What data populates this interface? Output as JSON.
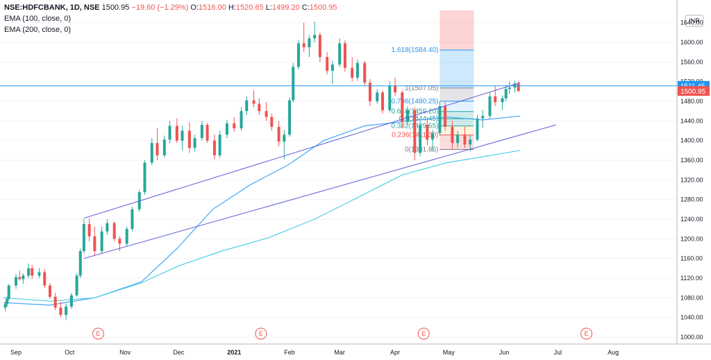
{
  "header": {
    "symbol": "NSE:HDFCBANK, 1D, NSE",
    "last": "1500.95",
    "change": "−19.60 (−1.29%)",
    "o_label": "O:",
    "o_value": "1516.00",
    "h_label": "H:",
    "h_value": "1520.65",
    "l_label": "L:",
    "l_value": "1499.20",
    "c_label": "C:",
    "c_value": "1500.95",
    "indicators": [
      "EMA (100, close, 0)",
      "EMA (200, close, 0)"
    ]
  },
  "currency": "INR",
  "colors": {
    "up": "#26a69a",
    "down": "#ef5350",
    "ema100": "#42a5f5",
    "ema200": "#4dd0e1",
    "trendline": "#5b5bd6",
    "hline": "#2196f3",
    "axis_text": "#131722"
  },
  "chart_data": {
    "type": "candlestick",
    "title": "",
    "ylim": [
      990,
      1665
    ],
    "y_ticks": [
      1640,
      1600,
      1560,
      1520,
      1480,
      1440,
      1400,
      1360,
      1320,
      1280,
      1240,
      1200,
      1160,
      1120,
      1080,
      1040,
      1000
    ],
    "x_ticks": [
      "Sep",
      "Oct",
      "Nov",
      "Dec",
      "2021",
      "Feb",
      "Mar",
      "Apr",
      "May",
      "Jun",
      "Jul",
      "Aug"
    ],
    "price_tags": [
      {
        "label": "1511.45",
        "value": 1511.45,
        "color": "#2196f3"
      },
      {
        "label": "1500.95",
        "value": 1500.95,
        "color": "#ef5350"
      }
    ],
    "horizontal_line": 1511.45,
    "fib_levels": [
      {
        "label": "1.618(1584.40)",
        "value": 1584.4,
        "color": "#2196f3"
      },
      {
        "label": "1(1507.05)",
        "value": 1507.05,
        "color": "#787b86"
      },
      {
        "label": "0.786(1480.25)",
        "value": 1480.25,
        "color": "#2196f3"
      },
      {
        "label": "0.618(1459.20)",
        "value": 1459.2,
        "color": "#26a69a"
      },
      {
        "label": "0.5(1444.45)",
        "value": 1444.45,
        "color": "#26a69a"
      },
      {
        "label": "0.382(1429.65)",
        "value": 1429.65,
        "color": "#26a69a"
      },
      {
        "label": "0.236(1411.30)",
        "value": 1411.3,
        "color": "#ef5350"
      },
      {
        "label": "0(1381.85)",
        "value": 1381.85,
        "color": "#787b86"
      }
    ],
    "event_marker": "E",
    "events": [
      "2020-10-17",
      "2021-01-16",
      "2021-04-17",
      "2021-07-17"
    ],
    "trendlines": [
      {
        "from": [
          "2020-10-09",
          1242
        ],
        "to": [
          "2021-06-10",
          1518
        ]
      },
      {
        "from": [
          "2020-10-09",
          1160
        ],
        "to": [
          "2021-06-30",
          1432
        ]
      }
    ],
    "ema100": [
      [
        "2020-08-25",
        1070
      ],
      [
        "2020-09-20",
        1065
      ],
      [
        "2020-10-15",
        1080
      ],
      [
        "2020-11-10",
        1112
      ],
      [
        "2020-11-30",
        1180
      ],
      [
        "2020-12-20",
        1260
      ],
      [
        "2021-01-10",
        1310
      ],
      [
        "2021-01-31",
        1350
      ],
      [
        "2021-02-20",
        1400
      ],
      [
        "2021-03-15",
        1430
      ],
      [
        "2021-04-10",
        1440
      ],
      [
        "2021-04-30",
        1448
      ],
      [
        "2021-05-20",
        1442
      ],
      [
        "2021-06-10",
        1450
      ]
    ],
    "ema200": [
      [
        "2020-08-25",
        1080
      ],
      [
        "2020-09-20",
        1073
      ],
      [
        "2020-10-15",
        1080
      ],
      [
        "2020-11-10",
        1110
      ],
      [
        "2020-12-01",
        1145
      ],
      [
        "2020-12-25",
        1175
      ],
      [
        "2021-01-20",
        1202
      ],
      [
        "2021-02-15",
        1240
      ],
      [
        "2021-03-10",
        1282
      ],
      [
        "2021-04-05",
        1330
      ],
      [
        "2021-04-30",
        1355
      ],
      [
        "2021-05-20",
        1367
      ],
      [
        "2021-06-10",
        1380
      ]
    ],
    "ohlc": [
      [
        "2020-08-26",
        1060,
        1072,
        1053,
        1067
      ],
      [
        "2020-08-27",
        1067,
        1082,
        1062,
        1078
      ],
      [
        "2020-08-28",
        1078,
        1108,
        1075,
        1105
      ],
      [
        "2020-09-01",
        1105,
        1128,
        1098,
        1122
      ],
      [
        "2020-09-03",
        1122,
        1135,
        1115,
        1118
      ],
      [
        "2020-09-05",
        1118,
        1130,
        1108,
        1125
      ],
      [
        "2020-09-08",
        1125,
        1150,
        1120,
        1140
      ],
      [
        "2020-09-10",
        1140,
        1147,
        1118,
        1125
      ],
      [
        "2020-09-14",
        1125,
        1140,
        1120,
        1132
      ],
      [
        "2020-09-17",
        1132,
        1138,
        1100,
        1105
      ],
      [
        "2020-09-20",
        1105,
        1110,
        1078,
        1082
      ],
      [
        "2020-09-23",
        1082,
        1090,
        1055,
        1060
      ],
      [
        "2020-09-26",
        1060,
        1072,
        1040,
        1045
      ],
      [
        "2020-09-29",
        1045,
        1068,
        1035,
        1062
      ],
      [
        "2020-10-02",
        1062,
        1090,
        1058,
        1085
      ],
      [
        "2020-10-05",
        1085,
        1130,
        1082,
        1125
      ],
      [
        "2020-10-07",
        1125,
        1180,
        1120,
        1175
      ],
      [
        "2020-10-09",
        1175,
        1240,
        1170,
        1230
      ],
      [
        "2020-10-12",
        1230,
        1242,
        1195,
        1205
      ],
      [
        "2020-10-15",
        1205,
        1225,
        1165,
        1175
      ],
      [
        "2020-10-19",
        1175,
        1225,
        1170,
        1215
      ],
      [
        "2020-10-22",
        1215,
        1240,
        1208,
        1232
      ],
      [
        "2020-10-26",
        1232,
        1236,
        1195,
        1200
      ],
      [
        "2020-10-29",
        1200,
        1205,
        1175,
        1190
      ],
      [
        "2020-11-02",
        1190,
        1225,
        1185,
        1220
      ],
      [
        "2020-11-05",
        1220,
        1265,
        1215,
        1260
      ],
      [
        "2020-11-09",
        1260,
        1300,
        1255,
        1295
      ],
      [
        "2020-11-12",
        1295,
        1360,
        1290,
        1355
      ],
      [
        "2020-11-16",
        1355,
        1405,
        1350,
        1395
      ],
      [
        "2020-11-19",
        1395,
        1425,
        1360,
        1370
      ],
      [
        "2020-11-23",
        1370,
        1410,
        1365,
        1402
      ],
      [
        "2020-11-26",
        1402,
        1440,
        1395,
        1430
      ],
      [
        "2020-11-30",
        1430,
        1445,
        1395,
        1400
      ],
      [
        "2020-12-03",
        1400,
        1430,
        1380,
        1420
      ],
      [
        "2020-12-07",
        1420,
        1438,
        1375,
        1385
      ],
      [
        "2020-12-10",
        1385,
        1412,
        1378,
        1405
      ],
      [
        "2020-12-14",
        1405,
        1440,
        1400,
        1432
      ],
      [
        "2020-12-17",
        1432,
        1436,
        1395,
        1400
      ],
      [
        "2020-12-21",
        1400,
        1412,
        1362,
        1370
      ],
      [
        "2020-12-24",
        1370,
        1420,
        1365,
        1412
      ],
      [
        "2020-12-28",
        1412,
        1442,
        1405,
        1435
      ],
      [
        "2021-01-01",
        1435,
        1448,
        1418,
        1425
      ],
      [
        "2021-01-05",
        1425,
        1468,
        1420,
        1460
      ],
      [
        "2021-01-08",
        1460,
        1490,
        1452,
        1482
      ],
      [
        "2021-01-12",
        1482,
        1502,
        1468,
        1475
      ],
      [
        "2021-01-15",
        1475,
        1486,
        1452,
        1460
      ],
      [
        "2021-01-19",
        1460,
        1478,
        1440,
        1448
      ],
      [
        "2021-01-22",
        1448,
        1455,
        1420,
        1428
      ],
      [
        "2021-01-26",
        1428,
        1440,
        1388,
        1398
      ],
      [
        "2021-01-29",
        1398,
        1422,
        1362,
        1412
      ],
      [
        "2021-02-01",
        1412,
        1488,
        1408,
        1482
      ],
      [
        "2021-02-03",
        1482,
        1558,
        1478,
        1550
      ],
      [
        "2021-02-06",
        1550,
        1605,
        1545,
        1598
      ],
      [
        "2021-02-09",
        1598,
        1640,
        1580,
        1590
      ],
      [
        "2021-02-12",
        1590,
        1615,
        1570,
        1608
      ],
      [
        "2021-02-15",
        1608,
        1642,
        1600,
        1615
      ],
      [
        "2021-02-18",
        1615,
        1620,
        1560,
        1570
      ],
      [
        "2021-02-22",
        1570,
        1580,
        1535,
        1542
      ],
      [
        "2021-02-25",
        1542,
        1562,
        1515,
        1555
      ],
      [
        "2021-03-01",
        1555,
        1608,
        1550,
        1598
      ],
      [
        "2021-03-04",
        1598,
        1604,
        1540,
        1548
      ],
      [
        "2021-03-08",
        1548,
        1570,
        1520,
        1528
      ],
      [
        "2021-03-11",
        1528,
        1565,
        1522,
        1558
      ],
      [
        "2021-03-15",
        1558,
        1562,
        1512,
        1518
      ],
      [
        "2021-03-18",
        1518,
        1525,
        1470,
        1480
      ],
      [
        "2021-03-22",
        1480,
        1505,
        1475,
        1498
      ],
      [
        "2021-03-25",
        1498,
        1502,
        1455,
        1462
      ],
      [
        "2021-03-29",
        1462,
        1520,
        1458,
        1512
      ],
      [
        "2021-04-01",
        1512,
        1528,
        1490,
        1498
      ],
      [
        "2021-04-05",
        1498,
        1502,
        1425,
        1438
      ],
      [
        "2021-04-08",
        1438,
        1470,
        1430,
        1462
      ],
      [
        "2021-04-12",
        1462,
        1468,
        1360,
        1375
      ],
      [
        "2021-04-15",
        1375,
        1440,
        1368,
        1432
      ],
      [
        "2021-04-19",
        1432,
        1448,
        1390,
        1402
      ],
      [
        "2021-04-22",
        1402,
        1422,
        1378,
        1415
      ],
      [
        "2021-04-26",
        1415,
        1480,
        1410,
        1470
      ],
      [
        "2021-04-29",
        1470,
        1478,
        1420,
        1428
      ],
      [
        "2021-05-03",
        1428,
        1440,
        1382,
        1395
      ],
      [
        "2021-05-06",
        1395,
        1420,
        1385,
        1412
      ],
      [
        "2021-05-10",
        1412,
        1428,
        1385,
        1392
      ],
      [
        "2021-05-13",
        1392,
        1410,
        1378,
        1402
      ],
      [
        "2021-05-17",
        1402,
        1452,
        1398,
        1445
      ],
      [
        "2021-05-20",
        1445,
        1462,
        1425,
        1450
      ],
      [
        "2021-05-24",
        1450,
        1498,
        1445,
        1490
      ],
      [
        "2021-05-27",
        1490,
        1512,
        1470,
        1478
      ],
      [
        "2021-05-31",
        1478,
        1492,
        1462,
        1486
      ],
      [
        "2021-06-02",
        1486,
        1512,
        1480,
        1505
      ],
      [
        "2021-06-04",
        1505,
        1520,
        1495,
        1508
      ],
      [
        "2021-06-07",
        1508,
        1522,
        1498,
        1516
      ],
      [
        "2021-06-09",
        1516,
        1520.65,
        1499.2,
        1500.95
      ]
    ]
  }
}
